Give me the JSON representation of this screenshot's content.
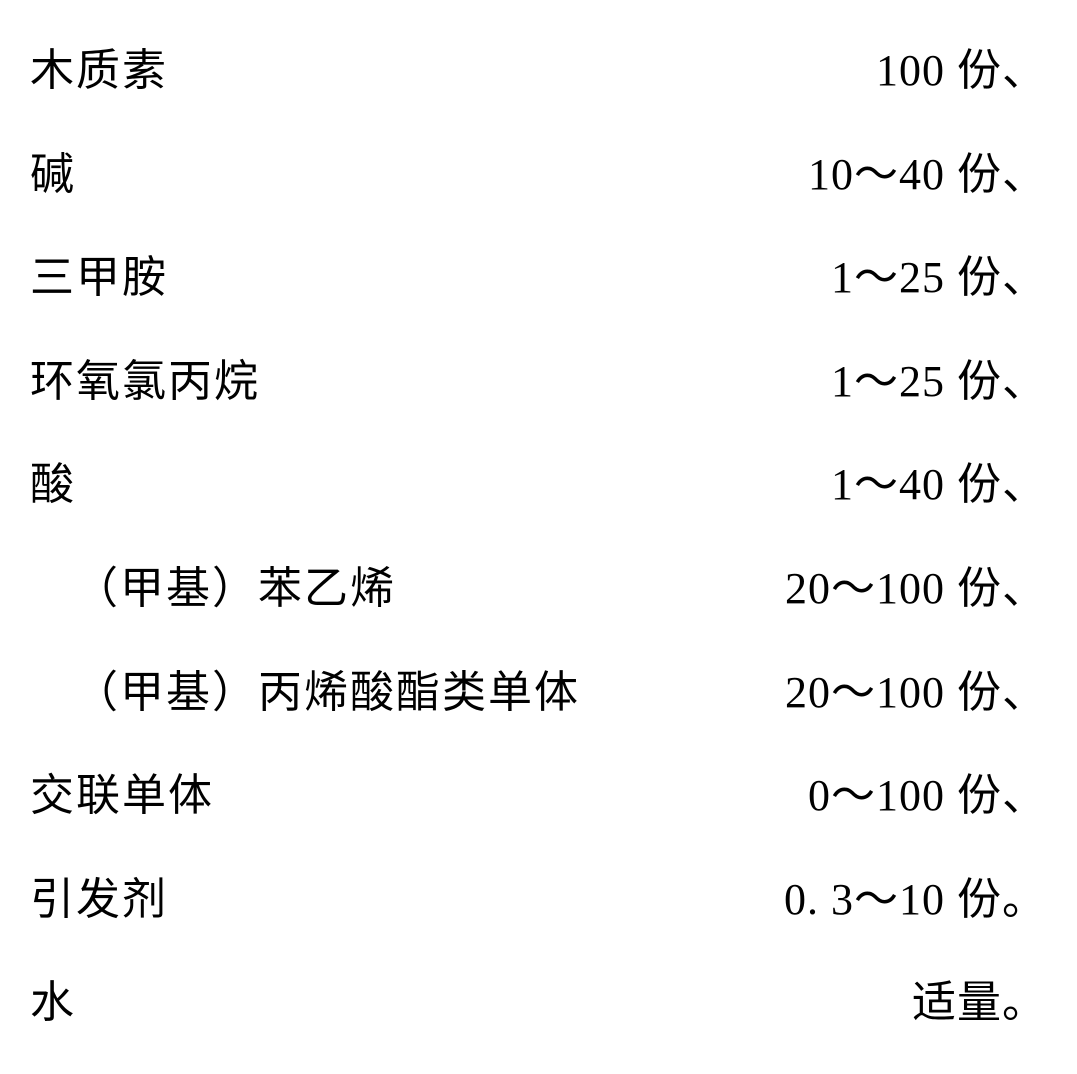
{
  "table": {
    "rows": [
      {
        "label": "木质素",
        "value": "100 份、",
        "indent": false
      },
      {
        "label": "碱",
        "value": "10～40 份、",
        "indent": false
      },
      {
        "label": "三甲胺",
        "value": "1～25 份、",
        "indent": false
      },
      {
        "label": "环氧氯丙烷",
        "value": "1～25 份、",
        "indent": false
      },
      {
        "label": "酸",
        "value": "1～40 份、",
        "indent": false
      },
      {
        "label": "（甲基）苯乙烯",
        "value": "20～100 份、",
        "indent": true
      },
      {
        "label": "（甲基）丙烯酸酯类单体",
        "value": "20～100 份、",
        "indent": true
      },
      {
        "label": "交联单体",
        "value": "0～100 份、",
        "indent": false
      },
      {
        "label": "引发剂",
        "value": "0. 3～10 份。",
        "indent": false
      },
      {
        "label": "水",
        "value": "适量。",
        "indent": false
      }
    ],
    "font_size": 44,
    "text_color": "#000000",
    "background_color": "#ffffff",
    "row_spacing": 42
  }
}
